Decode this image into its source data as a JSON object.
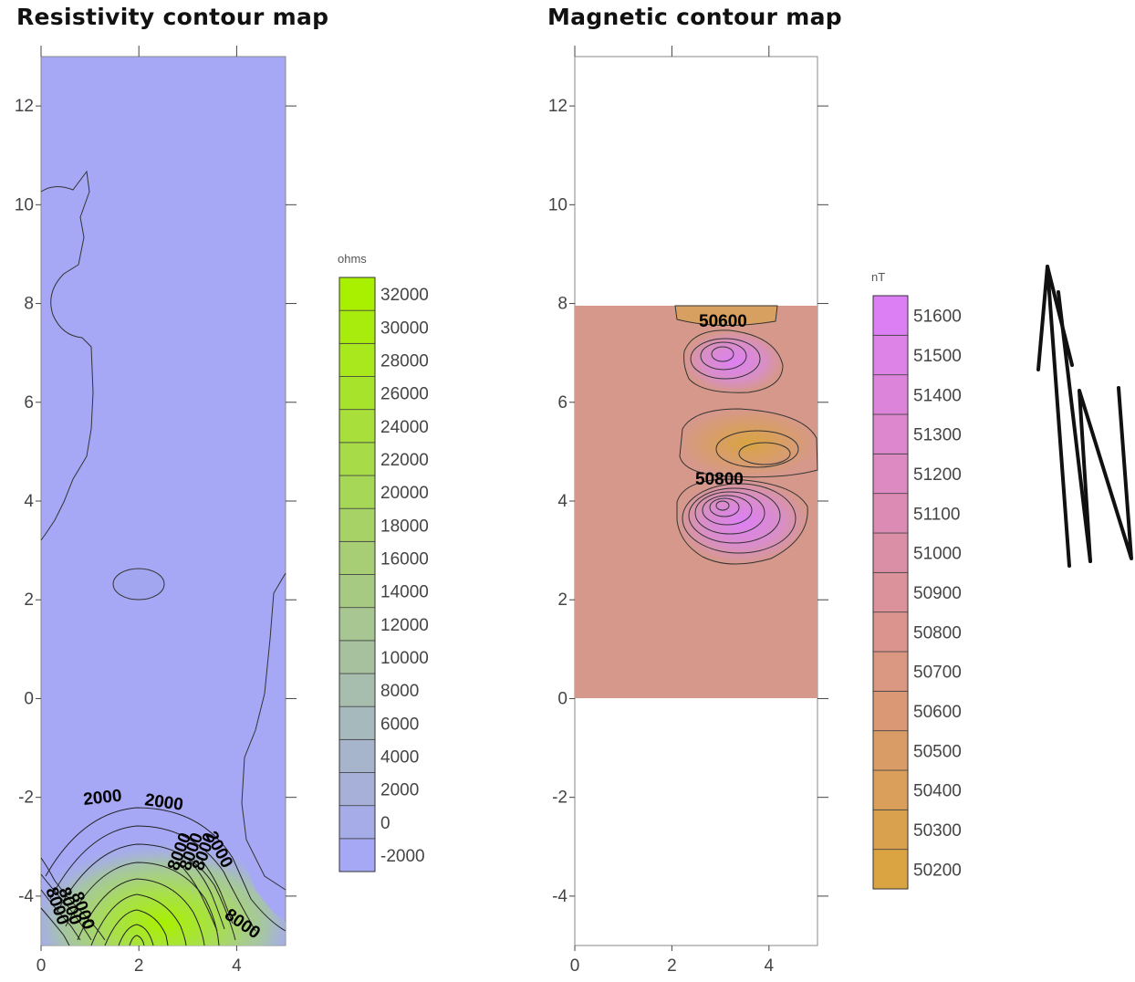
{
  "charts": [
    {
      "title": "Resistivity contour map",
      "type": "contour",
      "xlim": [
        0,
        5
      ],
      "ylim": [
        -5,
        13
      ],
      "x_ticks": [
        0,
        2,
        4
      ],
      "y_ticks": [
        -4,
        -2,
        0,
        2,
        4,
        6,
        8,
        10,
        12
      ],
      "colorbar": {
        "unit": "ohms",
        "levels": [
          -2000,
          0,
          2000,
          4000,
          6000,
          8000,
          10000,
          12000,
          14000,
          16000,
          18000,
          20000,
          22000,
          24000,
          26000,
          28000,
          30000,
          32000
        ],
        "color_low": "#a6a8f6",
        "color_high": "#a8f000"
      },
      "contour_labels": [
        "2000",
        "2000",
        "2000",
        "8000"
      ],
      "colors": {
        "background": "#a6a8f6",
        "high": "#a8f000"
      }
    },
    {
      "title": "Magnetic contour map",
      "type": "contour",
      "xlim": [
        0,
        5
      ],
      "ylim": [
        -5,
        13
      ],
      "x_ticks": [
        0,
        2,
        4
      ],
      "y_ticks": [
        -4,
        -2,
        0,
        2,
        4,
        6,
        8,
        10,
        12
      ],
      "data_extent": {
        "y": [
          0,
          8
        ]
      },
      "colorbar": {
        "unit": "nT",
        "levels": [
          50200,
          50300,
          50400,
          50500,
          50600,
          50700,
          50800,
          50900,
          51000,
          51100,
          51200,
          51300,
          51400,
          51500,
          51600
        ],
        "color_low": "#d9a441",
        "color_high": "#dd7ff4"
      },
      "contour_labels": [
        "50600",
        "50800"
      ],
      "colors": {
        "background": "#d6988a",
        "high": "#dd7ff4",
        "low": "#d9a441"
      }
    }
  ],
  "north_arrow": {
    "label": "N"
  }
}
